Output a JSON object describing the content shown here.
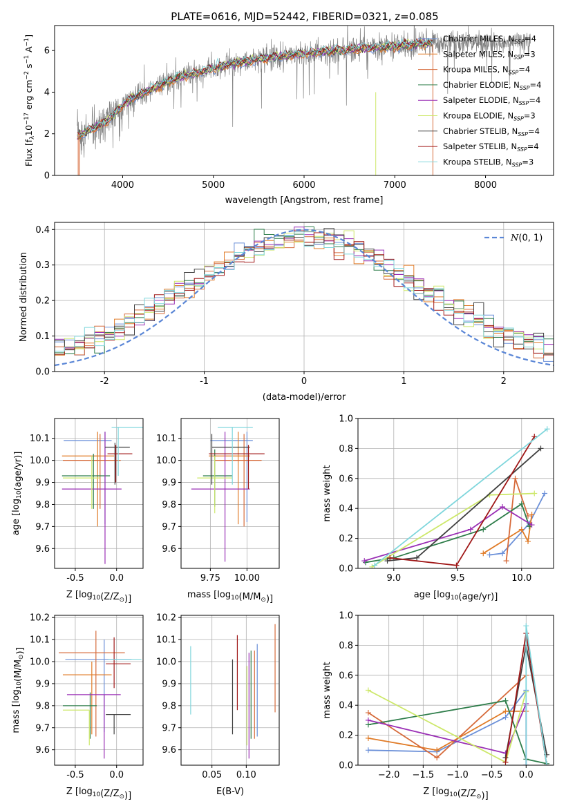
{
  "figure_title": "PLATE=0616, MJD=52442, FIBERID=0321, z=0.085",
  "colors": {
    "Chabrier MILES": "#6a8fd8",
    "Salpeter MILES": "#e07b27",
    "Kroupa MILES": "#d66a3a",
    "Chabrier ELODIE": "#2e7d4a",
    "Salpeter ELODIE": "#9a2fb5",
    "Kroupa ELODIE": "#cde86a",
    "Chabrier STELIB": "#404040",
    "Salpeter STELIB": "#a01818",
    "Kroupa STELIB": "#7fd6dc",
    "gaussian": "#5a86d6"
  },
  "chart_data": [
    {
      "id": "spectrum",
      "type": "line",
      "title": "PLATE=0616, MJD=52442, FIBERID=0321, z=0.085",
      "xlabel": "wavelength [Angstrom, rest frame]",
      "ylabel": "Flux [f_λ 10^-17 erg cm^-2 s^-1 A^-1]",
      "xlim": [
        3250,
        8750
      ],
      "ylim": [
        0,
        7.2
      ],
      "xticks": [
        4000,
        5000,
        6000,
        7000,
        8000
      ],
      "yticks": [
        0,
        2,
        4,
        6
      ],
      "legend_position": "top-right",
      "legend": [
        {
          "label": "Chabrier MILES, N_SSP=4",
          "text": "Chabrier MILES, N",
          "sub": "SSP",
          "tail": "=4"
        },
        {
          "label": "Salpeter MILES, N_SSP=3",
          "text": "Salpeter MILES, N",
          "sub": "SSP",
          "tail": "=3"
        },
        {
          "label": "Kroupa MILES, N_SSP=4",
          "text": "Kroupa MILES, N",
          "sub": "SSP",
          "tail": "=4"
        },
        {
          "label": "Chabrier ELODIE, N_SSP=4",
          "text": "Chabrier ELODIE, N",
          "sub": "SSP",
          "tail": "=4"
        },
        {
          "label": "Salpeter ELODIE, N_SSP=4",
          "text": "Salpeter ELODIE, N",
          "sub": "SSP",
          "tail": "=4"
        },
        {
          "label": "Kroupa ELODIE, N_SSP=3",
          "text": "Kroupa ELODIE, N",
          "sub": "SSP",
          "tail": "=3"
        },
        {
          "label": "Chabrier STELIB, N_SSP=4",
          "text": "Chabrier STELIB, N",
          "sub": "SSP",
          "tail": "=4"
        },
        {
          "label": "Salpeter STELIB, N_SSP=4",
          "text": "Salpeter STELIB, N",
          "sub": "SSP",
          "tail": "=4"
        },
        {
          "label": "Kroupa STELIB, N_SSP=3",
          "text": "Kroupa STELIB, N",
          "sub": "SSP",
          "tail": "=3"
        }
      ],
      "observed_color": "#808080",
      "continuum_points": [
        [
          3500,
          1.9
        ],
        [
          3600,
          2.1
        ],
        [
          3700,
          2.3
        ],
        [
          3800,
          2.5
        ],
        [
          3900,
          2.9
        ],
        [
          4000,
          3.4
        ],
        [
          4100,
          3.7
        ],
        [
          4200,
          3.9
        ],
        [
          4300,
          4.1
        ],
        [
          4400,
          4.3
        ],
        [
          4500,
          4.5
        ],
        [
          4600,
          4.7
        ],
        [
          4700,
          4.8
        ],
        [
          4800,
          4.9
        ],
        [
          4900,
          5.05
        ],
        [
          5000,
          5.15
        ],
        [
          5200,
          5.35
        ],
        [
          5400,
          5.5
        ],
        [
          5600,
          5.65
        ],
        [
          5800,
          5.75
        ],
        [
          6000,
          5.85
        ],
        [
          6200,
          5.95
        ],
        [
          6500,
          6.05
        ],
        [
          6800,
          6.15
        ],
        [
          7000,
          6.2
        ],
        [
          7200,
          6.3
        ],
        [
          7400,
          6.35
        ]
      ],
      "observed_range": [
        3500,
        8500
      ],
      "model_range": [
        3500,
        7420
      ]
    },
    {
      "id": "residual_hist",
      "type": "line",
      "xlabel": "(data-model)/error",
      "ylabel": "Normed distribution",
      "xlim": [
        -2.5,
        2.5
      ],
      "ylim": [
        0,
        0.42
      ],
      "xticks": [
        -2,
        -1,
        0,
        1,
        2
      ],
      "yticks": [
        0.0,
        0.1,
        0.2,
        0.3,
        0.4
      ],
      "grid": true,
      "legend_position": "top-right",
      "gaussian_label": "N(0,1)",
      "bin_width": 0.1
    },
    {
      "id": "age_vs_Z",
      "type": "scatter",
      "xlabel": "Z [log10(Z/Z⊙)]",
      "ylabel": "age [log10(age/yr)]",
      "xlim": [
        -0.75,
        0.32
      ],
      "ylim": [
        9.51,
        10.19
      ],
      "xticks": [
        -0.5,
        0.0
      ],
      "yticks": [
        9.6,
        9.7,
        9.8,
        9.9,
        10.0,
        10.1
      ],
      "grid": true,
      "points": [
        {
          "series": "Chabrier MILES",
          "x": -0.14,
          "xerr": [
            0.5,
            0.08
          ],
          "y": 10.09,
          "yerr": [
            0.38,
            0.04
          ]
        },
        {
          "series": "Salpeter MILES",
          "x": -0.23,
          "xerr": [
            0.43,
            0.2
          ],
          "y": 10.02,
          "yerr": [
            0.32,
            0.11
          ]
        },
        {
          "series": "Kroupa MILES",
          "x": -0.2,
          "xerr": [
            0.45,
            0.25
          ],
          "y": 10.0,
          "yerr": [
            0.22,
            0.12
          ]
        },
        {
          "series": "Chabrier ELODIE",
          "x": -0.28,
          "xerr": [
            0.38,
            0.2
          ],
          "y": 9.93,
          "yerr": [
            0.15,
            0.1
          ]
        },
        {
          "series": "Salpeter ELODIE",
          "x": -0.14,
          "xerr": [
            0.52,
            0.2
          ],
          "y": 9.87,
          "yerr": [
            0.34,
            0.26
          ]
        },
        {
          "series": "Kroupa ELODIE",
          "x": -0.3,
          "xerr": [
            0.35,
            0.1
          ],
          "y": 9.92,
          "yerr": [
            0.14,
            0.1
          ]
        },
        {
          "series": "Chabrier STELIB",
          "x": -0.02,
          "xerr": [
            0.12,
            0.18
          ],
          "y": 10.06,
          "yerr": [
            0.17,
            0.02
          ]
        },
        {
          "series": "Salpeter STELIB",
          "x": -0.01,
          "xerr": [
            0.1,
            0.2
          ],
          "y": 10.03,
          "yerr": [
            0.13,
            0.04
          ]
        },
        {
          "series": "Kroupa STELIB",
          "x": 0.02,
          "xerr": [
            0.08,
            0.3
          ],
          "y": 10.15,
          "yerr": [
            0.22,
            0.0
          ]
        }
      ]
    },
    {
      "id": "age_vs_mass",
      "type": "scatter",
      "xlabel": "mass [log10(M/M⊙)]",
      "ylabel": "",
      "xlim": [
        9.55,
        10.22
      ],
      "ylim": [
        9.51,
        10.19
      ],
      "xticks": [
        9.75,
        10.0
      ],
      "yticks": [
        9.6,
        9.7,
        9.8,
        9.9,
        10.0,
        10.1
      ],
      "grid": true,
      "points": [
        {
          "series": "Chabrier MILES",
          "x": 10.0,
          "xerr": [
            0.25,
            0.04
          ],
          "y": 10.09,
          "yerr": [
            0.37,
            0.04
          ]
        },
        {
          "series": "Salpeter MILES",
          "x": 9.94,
          "xerr": [
            0.2,
            0.08
          ],
          "y": 10.02,
          "yerr": [
            0.31,
            0.11
          ]
        },
        {
          "series": "Kroupa MILES",
          "x": 9.98,
          "xerr": [
            0.2,
            0.12
          ],
          "y": 10.0,
          "yerr": [
            0.3,
            0.12
          ]
        },
        {
          "series": "Chabrier ELODIE",
          "x": 9.78,
          "xerr": [
            0.08,
            0.12
          ],
          "y": 9.93,
          "yerr": [
            0.14,
            0.12
          ]
        },
        {
          "series": "Salpeter ELODIE",
          "x": 9.85,
          "xerr": [
            0.23,
            0.17
          ],
          "y": 9.87,
          "yerr": [
            0.33,
            0.26
          ]
        },
        {
          "series": "Kroupa ELODIE",
          "x": 9.78,
          "xerr": [
            0.12,
            0.12
          ],
          "y": 9.92,
          "yerr": [
            0.16,
            0.1
          ]
        },
        {
          "series": "Chabrier STELIB",
          "x": 9.76,
          "xerr": [
            0.0,
            0.26
          ],
          "y": 10.06,
          "yerr": [
            0.17,
            0.06
          ]
        },
        {
          "series": "Salpeter STELIB",
          "x": 10.01,
          "xerr": [
            0.27,
            0.11
          ],
          "y": 10.03,
          "yerr": [
            0.16,
            0.04
          ]
        },
        {
          "series": "Kroupa STELIB",
          "x": 9.9,
          "xerr": [
            0.1,
            0.14
          ],
          "y": 10.15,
          "yerr": [
            0.26,
            0.0
          ]
        }
      ]
    },
    {
      "id": "mass_weight_vs_age",
      "type": "line",
      "xlabel": "age [log10(age/yr)]",
      "ylabel": "mass weight",
      "xlim": [
        8.72,
        10.25
      ],
      "ylim": [
        0,
        1.0
      ],
      "xticks": [
        9.0,
        9.5,
        10.0
      ],
      "yticks": [
        0.0,
        0.2,
        0.4,
        0.6,
        0.8,
        1.0
      ],
      "grid": true,
      "series": [
        {
          "name": "Chabrier MILES",
          "x": [
            9.75,
            9.85,
            10.06,
            10.18
          ],
          "y": [
            0.09,
            0.1,
            0.3,
            0.5
          ]
        },
        {
          "name": "Salpeter MILES",
          "x": [
            9.7,
            10.0,
            10.05,
            10.08
          ],
          "y": [
            0.1,
            0.26,
            0.18,
            0.36
          ]
        },
        {
          "name": "Kroupa MILES",
          "x": [
            9.88,
            9.95,
            10.05
          ],
          "y": [
            0.05,
            0.6,
            0.35
          ]
        },
        {
          "name": "Chabrier ELODIE",
          "x": [
            8.78,
            9.0,
            9.7,
            10.0,
            10.06
          ],
          "y": [
            0.04,
            0.07,
            0.26,
            0.43,
            0.28
          ]
        },
        {
          "name": "Salpeter ELODIE",
          "x": [
            8.77,
            9.6,
            9.85,
            10.08
          ],
          "y": [
            0.05,
            0.26,
            0.41,
            0.29
          ]
        },
        {
          "name": "Kroupa ELODIE",
          "x": [
            8.83,
            9.75,
            10.1
          ],
          "y": [
            0.01,
            0.49,
            0.5
          ]
        },
        {
          "name": "Chabrier STELIB",
          "x": [
            8.95,
            9.18,
            10.15
          ],
          "y": [
            0.05,
            0.07,
            0.8
          ]
        },
        {
          "name": "Salpeter STELIB",
          "x": [
            8.97,
            9.49,
            10.1
          ],
          "y": [
            0.07,
            0.02,
            0.88
          ]
        },
        {
          "name": "Kroupa STELIB",
          "x": [
            8.85,
            10.2
          ],
          "y": [
            0.02,
            0.93
          ]
        }
      ]
    },
    {
      "id": "mass_vs_Z",
      "type": "scatter",
      "xlabel": "Z [log10(Z/Z⊙)]",
      "ylabel": "mass [log10(M/M⊙)]",
      "xlim": [
        -0.75,
        0.32
      ],
      "ylim": [
        9.53,
        10.21
      ],
      "xticks": [
        -0.5,
        0.0
      ],
      "yticks": [
        9.6,
        9.7,
        9.8,
        9.9,
        10.0,
        10.1,
        10.2
      ],
      "grid": true,
      "points": [
        {
          "series": "Chabrier MILES",
          "x": -0.15,
          "xerr": [
            0.47,
            0.33
          ],
          "y": 10.01,
          "yerr": [
            0.33,
            0.09
          ]
        },
        {
          "series": "Salpeter MILES",
          "x": -0.3,
          "xerr": [
            0.35,
            0.24
          ],
          "y": 9.94,
          "yerr": [
            0.27,
            0.06
          ]
        },
        {
          "series": "Kroupa MILES",
          "x": -0.25,
          "xerr": [
            0.45,
            0.35
          ],
          "y": 10.04,
          "yerr": [
            0.38,
            0.1
          ]
        },
        {
          "series": "Chabrier ELODIE",
          "x": -0.32,
          "xerr": [
            0.33,
            0.08
          ],
          "y": 9.8,
          "yerr": [
            0.15,
            0.06
          ]
        },
        {
          "series": "Salpeter ELODIE",
          "x": -0.15,
          "xerr": [
            0.45,
            0.2
          ],
          "y": 9.85,
          "yerr": [
            0.29,
            0.0
          ]
        },
        {
          "series": "Kroupa ELODIE",
          "x": -0.33,
          "xerr": [
            0.32,
            0.0
          ],
          "y": 9.78,
          "yerr": [
            0.16,
            0.0
          ]
        },
        {
          "series": "Chabrier STELIB",
          "x": -0.03,
          "xerr": [
            0.1,
            0.2
          ],
          "y": 9.76,
          "yerr": [
            0.09,
            0.0
          ]
        },
        {
          "series": "Salpeter STELIB",
          "x": -0.03,
          "xerr": [
            0.1,
            0.2
          ],
          "y": 9.99,
          "yerr": [
            0.11,
            0.12
          ]
        },
        {
          "series": "Kroupa STELIB",
          "x": 0.0,
          "xerr": [
            0.1,
            0.3
          ],
          "y": 10.01,
          "yerr": [
            0.0,
            0.0
          ]
        }
      ]
    },
    {
      "id": "mass_vs_EBV",
      "type": "scatter",
      "xlabel": "E(B-V)",
      "ylabel": "",
      "xlim": [
        0.005,
        0.148
      ],
      "ylim": [
        9.53,
        10.21
      ],
      "xticks": [
        0.05,
        0.1
      ],
      "yticks": [
        9.6,
        9.7,
        9.8,
        9.9,
        10.0,
        10.1,
        10.2
      ],
      "grid": true,
      "points": [
        {
          "series": "Kroupa STELIB",
          "x": 0.019,
          "y": 9.92,
          "yerr": [
            0.16,
            0.15
          ]
        },
        {
          "series": "Chabrier STELIB",
          "x": 0.08,
          "y": 9.84,
          "yerr": [
            0.17,
            0.17
          ]
        },
        {
          "series": "Salpeter STELIB",
          "x": 0.087,
          "y": 9.95,
          "yerr": [
            0.17,
            0.17
          ]
        },
        {
          "series": "Kroupa ELODIE",
          "x": 0.101,
          "y": 9.8,
          "yerr": [
            0.18,
            0.18
          ]
        },
        {
          "series": "Salpeter ELODIE",
          "x": 0.104,
          "y": 9.8,
          "yerr": [
            0.24,
            0.24
          ]
        },
        {
          "series": "Chabrier ELODIE",
          "x": 0.107,
          "y": 9.85,
          "yerr": [
            0.2,
            0.2
          ]
        },
        {
          "series": "Kroupa MILES",
          "x": 0.112,
          "y": 9.85,
          "yerr": [
            0.2,
            0.2
          ]
        },
        {
          "series": "Chabrier MILES",
          "x": 0.116,
          "y": 9.87,
          "yerr": [
            0.21,
            0.21
          ]
        },
        {
          "series": "Kroupa MILES",
          "x": 0.142,
          "y": 9.97,
          "yerr": [
            0.2,
            0.2
          ]
        }
      ]
    },
    {
      "id": "mass_weight_vs_Z",
      "type": "line",
      "xlabel": "Z [log10(Z/Z⊙)]",
      "ylabel": "mass weight",
      "xlim": [
        -2.45,
        0.4
      ],
      "ylim": [
        0,
        1.0
      ],
      "xticks": [
        -2.0,
        -1.5,
        -1.0,
        -0.5,
        0.0
      ],
      "yticks": [
        0.0,
        0.2,
        0.4,
        0.6,
        0.8,
        1.0
      ],
      "grid": true,
      "series": [
        {
          "name": "Chabrier MILES",
          "x": [
            -2.3,
            -1.3,
            -0.3,
            0.0
          ],
          "y": [
            0.1,
            0.09,
            0.32,
            0.5
          ]
        },
        {
          "name": "Salpeter MILES",
          "x": [
            -2.3,
            -1.3,
            -0.3,
            0.0
          ],
          "y": [
            0.18,
            0.1,
            0.36,
            0.36
          ]
        },
        {
          "name": "Kroupa MILES",
          "x": [
            -2.3,
            -1.3,
            0.0
          ],
          "y": [
            0.35,
            0.05,
            0.6
          ]
        },
        {
          "name": "Chabrier ELODIE",
          "x": [
            -2.3,
            -0.3,
            0.0,
            0.3
          ],
          "y": [
            0.27,
            0.43,
            0.04,
            0.01
          ]
        },
        {
          "name": "Salpeter ELODIE",
          "x": [
            -2.3,
            -0.3,
            0.0,
            0.0
          ],
          "y": [
            0.3,
            0.08,
            0.41,
            0.0
          ]
        },
        {
          "name": "Kroupa ELODIE",
          "x": [
            -2.3,
            -0.3,
            0.0
          ],
          "y": [
            0.5,
            0.02,
            0.49
          ]
        },
        {
          "name": "Chabrier STELIB",
          "x": [
            -0.3,
            0.0,
            0.3
          ],
          "y": [
            0.05,
            0.8,
            0.07
          ]
        },
        {
          "name": "Salpeter STELIB",
          "x": [
            -0.3,
            0.0,
            0.3
          ],
          "y": [
            0.02,
            0.88,
            0.0
          ]
        },
        {
          "name": "Kroupa STELIB",
          "x": [
            0.0,
            0.0,
            0.3
          ],
          "y": [
            0.0,
            0.93,
            0.0
          ]
        }
      ]
    }
  ]
}
